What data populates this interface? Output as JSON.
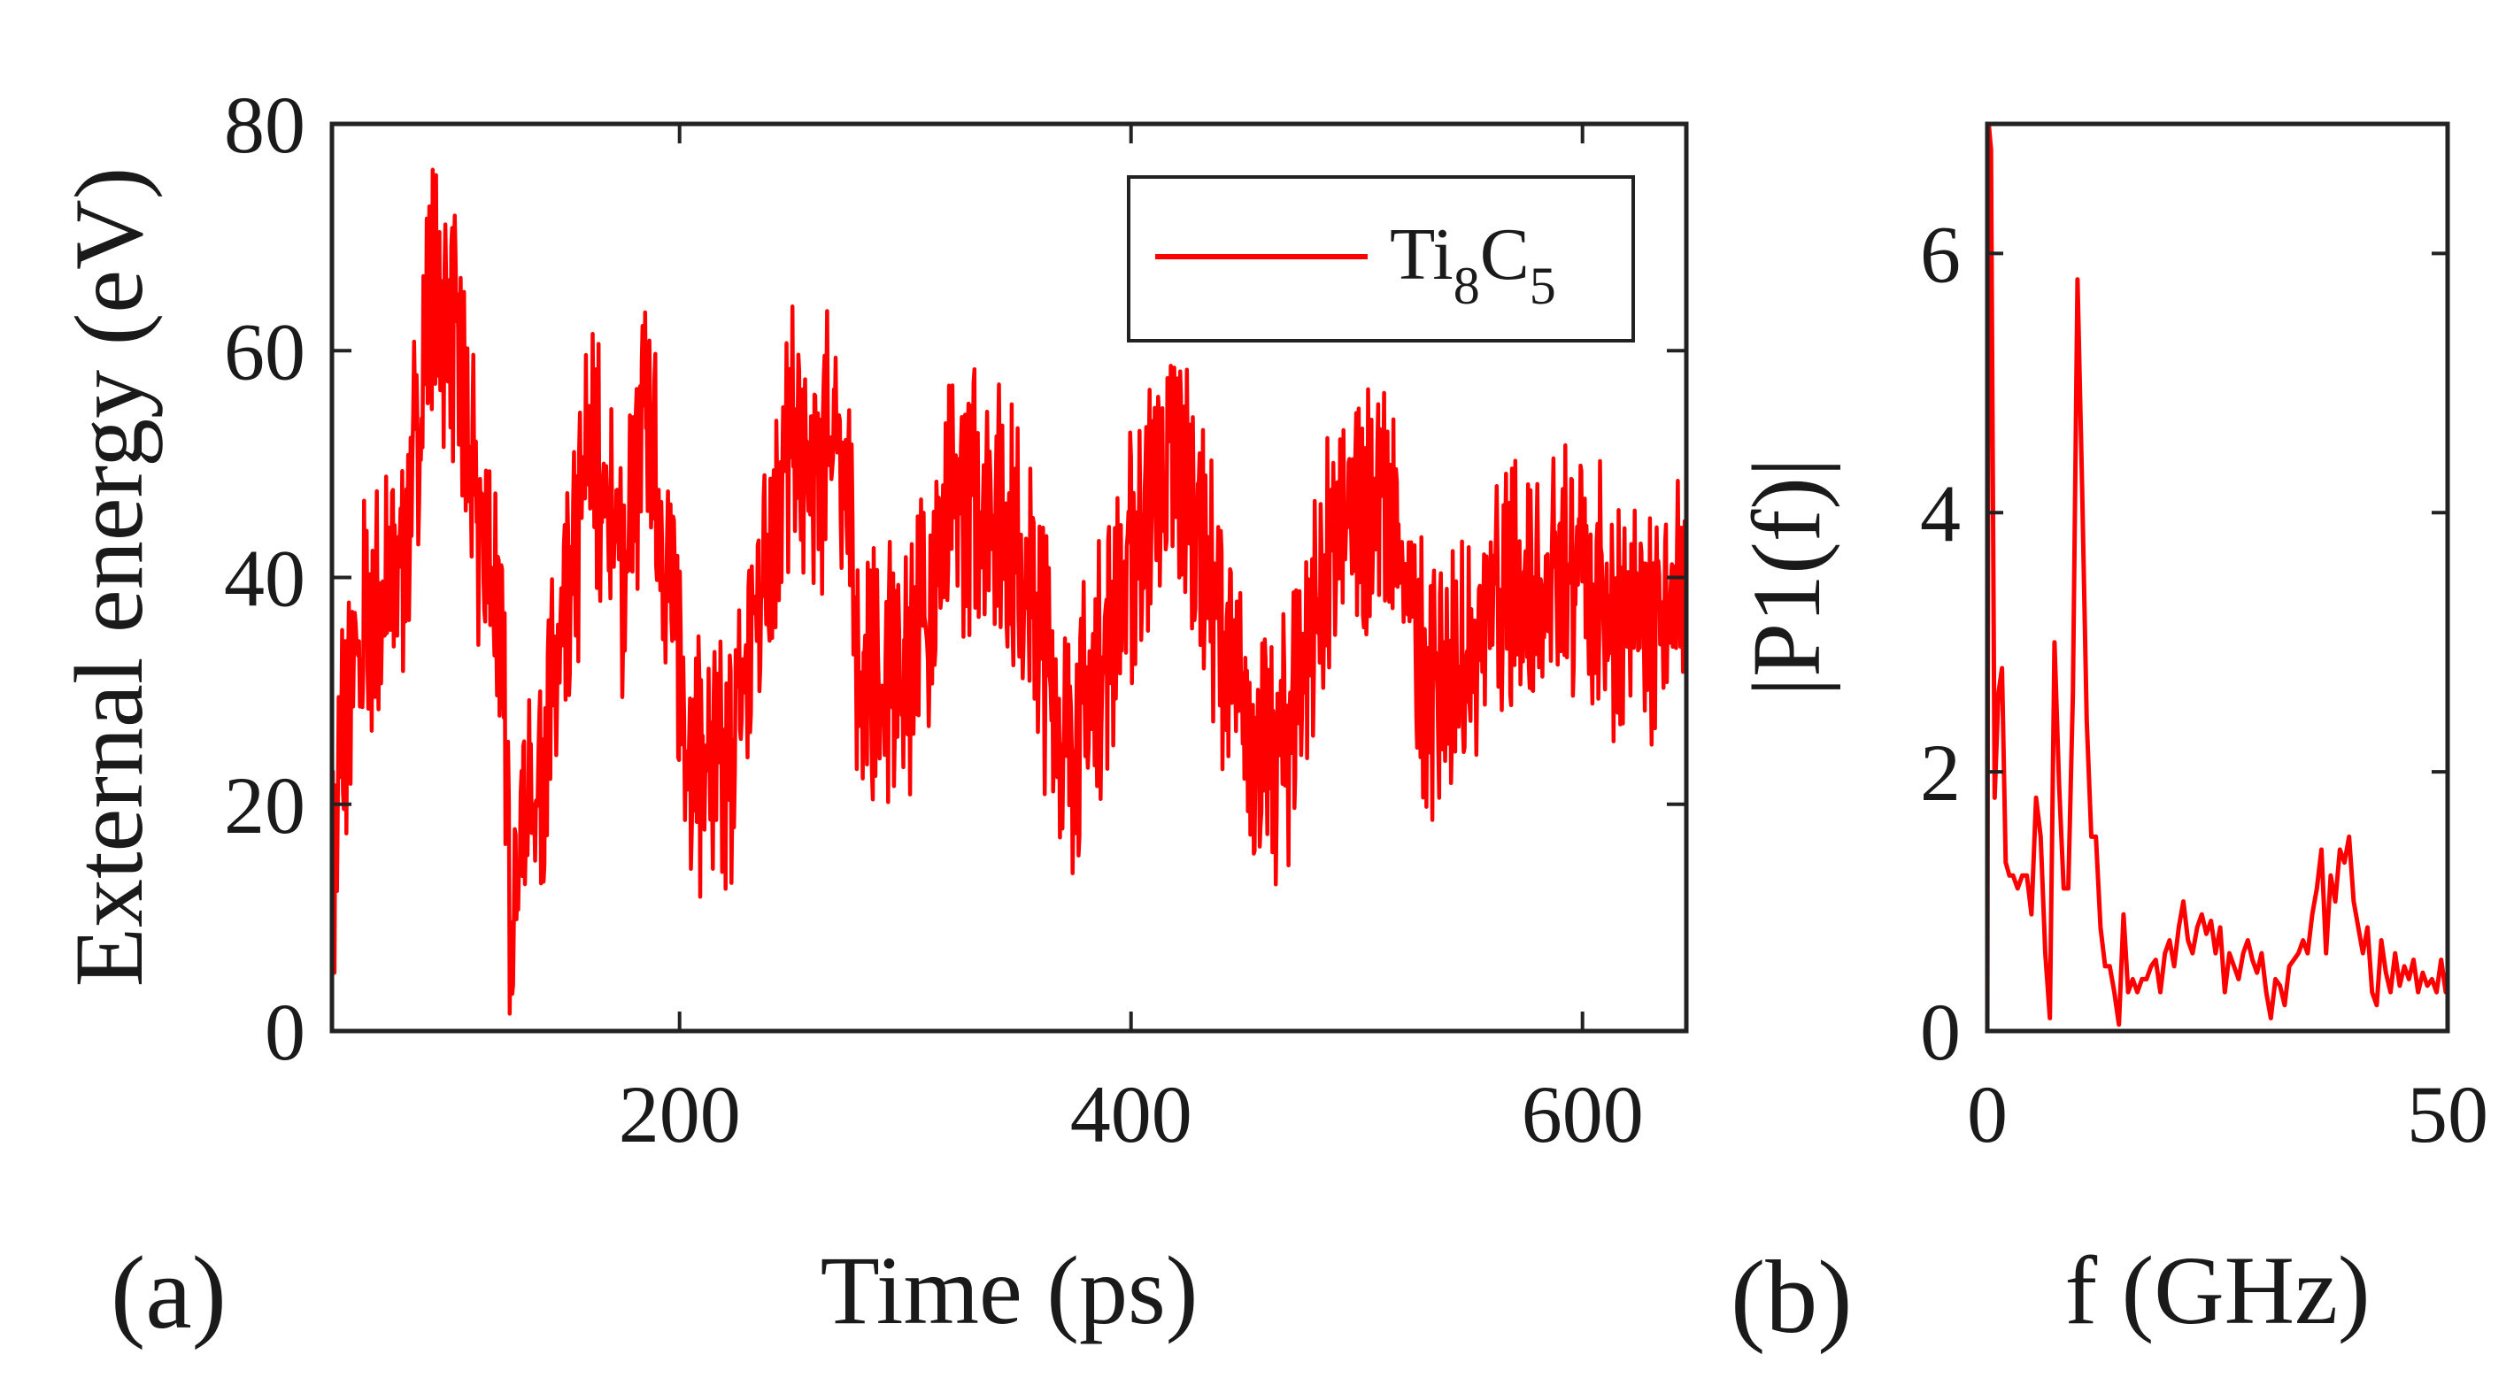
{
  "chart_data": [
    {
      "panel": "(a)",
      "type": "line",
      "xlabel": "Time (ps)",
      "ylabel": "External energy (eV)",
      "xlim": [
        46,
        646
      ],
      "ylim": [
        0,
        80
      ],
      "xticks": [
        200,
        400,
        600
      ],
      "yticks": [
        0,
        20,
        40,
        60,
        80
      ],
      "legend": {
        "position": "top-right",
        "entries": [
          {
            "name": "Ti",
            "sub1": "8",
            "mid": "C",
            "sub2": "5"
          }
        ]
      },
      "series": [
        {
          "name": "Ti8C5",
          "color": "#ff0000",
          "oscillation_period_ps": 80,
          "noise_amplitude_eV": 8,
          "envelope": [
            [
              46,
              10
            ],
            [
              50,
              25
            ],
            [
              60,
              35
            ],
            [
              70,
              38
            ],
            [
              80,
              45
            ],
            [
              90,
              65
            ],
            [
              100,
              62
            ],
            [
              110,
              45
            ],
            [
              120,
              38
            ],
            [
              125,
              12
            ],
            [
              130,
              18
            ],
            [
              140,
              25
            ],
            [
              150,
              35
            ],
            [
              160,
              52
            ],
            [
              170,
              45
            ],
            [
              175,
              40
            ],
            [
              185,
              55
            ],
            [
              195,
              40
            ],
            [
              205,
              25
            ],
            [
              220,
              22
            ],
            [
              230,
              32
            ],
            [
              240,
              45
            ],
            [
              250,
              52
            ],
            [
              260,
              48
            ],
            [
              270,
              55
            ],
            [
              280,
              32
            ],
            [
              290,
              30
            ],
            [
              300,
              32
            ],
            [
              310,
              38
            ],
            [
              320,
              45
            ],
            [
              330,
              48
            ],
            [
              340,
              47
            ],
            [
              350,
              42
            ],
            [
              360,
              35
            ],
            [
              370,
              25
            ],
            [
              380,
              28
            ],
            [
              390,
              35
            ],
            [
              400,
              42
            ],
            [
              410,
              48
            ],
            [
              420,
              50
            ],
            [
              430,
              45
            ],
            [
              440,
              35
            ],
            [
              450,
              28
            ],
            [
              460,
              23
            ],
            [
              470,
              27
            ],
            [
              480,
              36
            ],
            [
              490,
              42
            ],
            [
              500,
              45
            ],
            [
              510,
              48
            ],
            [
              520,
              40
            ],
            [
              530,
              32
            ],
            [
              540,
              30
            ],
            [
              550,
              33
            ],
            [
              560,
              37
            ],
            [
              570,
              38
            ],
            [
              580,
              40
            ],
            [
              590,
              42
            ],
            [
              600,
              40
            ],
            [
              610,
              38
            ],
            [
              620,
              35
            ],
            [
              630,
              37
            ],
            [
              646,
              38
            ]
          ]
        }
      ]
    },
    {
      "panel": "(b)",
      "type": "line",
      "xlabel": "f (GHz)",
      "ylabel": "|P1(f)|",
      "xlim": [
        0,
        50
      ],
      "ylim": [
        0,
        7
      ],
      "xticks": [
        0,
        50
      ],
      "yticks": [
        0,
        2,
        4,
        6
      ],
      "series": [
        {
          "name": "|P1(f)|",
          "color": "#ff0000",
          "x": [
            0,
            0.15,
            0.4,
            0.8,
            1.2,
            1.6,
            2.0,
            2.4,
            2.8,
            3.3,
            3.8,
            4.3,
            4.8,
            5.3,
            5.8,
            6.3,
            6.8,
            7.3,
            7.8,
            8.3,
            8.8,
            9.3,
            9.8,
            10.3,
            10.8,
            11.3,
            11.8,
            12.3,
            12.8,
            13.3,
            13.8,
            14.3,
            14.8,
            15.3,
            15.8,
            16.3,
            16.8,
            17.3,
            17.8,
            18.3,
            18.8,
            19.3,
            19.8,
            20.3,
            20.8,
            21.3,
            21.8,
            22.3,
            22.8,
            23.3,
            23.8,
            24.3,
            24.8,
            25.3,
            25.8,
            26.3,
            26.8,
            27.3,
            27.8,
            28.3,
            28.8,
            29.3,
            29.8,
            30.3,
            30.8,
            31.3,
            31.8,
            32.3,
            32.8,
            33.3,
            33.8,
            34.3,
            34.8,
            35.3,
            35.8,
            36.3,
            36.8,
            37.3,
            37.8,
            38.3,
            38.8,
            39.3,
            39.8,
            40.3,
            40.8,
            41.3,
            41.8,
            42.3,
            42.8,
            43.3,
            43.8,
            44.3,
            44.8,
            45.3,
            45.8,
            46.3,
            46.8,
            47.3,
            47.8,
            48.3,
            48.8,
            49.3,
            49.8,
            50.0
          ],
          "y": [
            0,
            7.0,
            6.8,
            1.8,
            2.6,
            2.8,
            1.3,
            1.2,
            1.2,
            1.1,
            1.2,
            1.2,
            0.9,
            1.8,
            1.5,
            0.6,
            0.1,
            3.0,
            1.9,
            1.1,
            1.1,
            2.6,
            5.8,
            4.2,
            2.4,
            1.5,
            1.5,
            0.8,
            0.5,
            0.5,
            0.3,
            0.05,
            0.9,
            0.3,
            0.4,
            0.3,
            0.4,
            0.4,
            0.5,
            0.55,
            0.3,
            0.6,
            0.7,
            0.5,
            0.8,
            1.0,
            0.7,
            0.6,
            0.8,
            0.9,
            0.75,
            0.85,
            0.6,
            0.8,
            0.3,
            0.6,
            0.5,
            0.4,
            0.6,
            0.7,
            0.55,
            0.45,
            0.6,
            0.3,
            0.1,
            0.4,
            0.35,
            0.2,
            0.5,
            0.55,
            0.6,
            0.7,
            0.6,
            0.9,
            1.1,
            1.4,
            0.6,
            1.2,
            1.0,
            1.4,
            1.3,
            1.5,
            1.0,
            0.8,
            0.6,
            0.8,
            0.3,
            0.2,
            0.7,
            0.45,
            0.3,
            0.6,
            0.35,
            0.5,
            0.4,
            0.55,
            0.3,
            0.45,
            0.35,
            0.4,
            0.3,
            0.55,
            0.3,
            0.45
          ]
        }
      ]
    }
  ],
  "labels": {
    "panel_a": "(a)",
    "panel_b": "(b)",
    "a_xlabel": "Time (ps)",
    "a_ylabel": "External energy (eV)",
    "b_xlabel": "f (GHz)",
    "b_ylabel": "|P1(f)|",
    "legend_main": "Ti",
    "legend_sub1": "8",
    "legend_mid": "C",
    "legend_sub2": "5"
  }
}
